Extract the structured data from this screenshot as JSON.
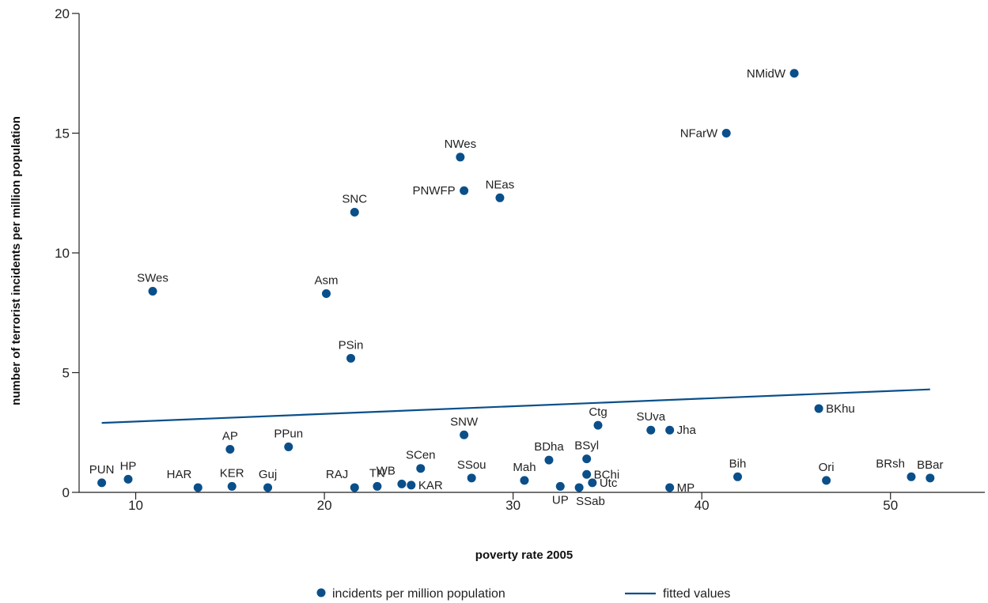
{
  "chart_data": {
    "type": "scatter",
    "xlabel": "poverty rate 2005",
    "ylabel": "number of terrorist incidents per million population",
    "xlim": [
      7,
      55
    ],
    "ylim": [
      0,
      20
    ],
    "xticks": [
      10,
      20,
      30,
      40,
      50
    ],
    "yticks": [
      0,
      5,
      10,
      15,
      20
    ],
    "grid": false,
    "legend_position": "bottom",
    "series": [
      {
        "name": "incidents per million population",
        "kind": "points",
        "color": "#0a4f8a",
        "points": [
          {
            "label": "PUN",
            "x": 8.2,
            "y": 0.4,
            "lpos": "above"
          },
          {
            "label": "HP",
            "x": 9.6,
            "y": 0.55,
            "lpos": "above"
          },
          {
            "label": "HAR",
            "x": 13.3,
            "y": 0.2,
            "lpos": "aboveleft"
          },
          {
            "label": "KER",
            "x": 15.1,
            "y": 0.25,
            "lpos": "above"
          },
          {
            "label": "Guj",
            "x": 17.0,
            "y": 0.2,
            "lpos": "above"
          },
          {
            "label": "AP",
            "x": 15.0,
            "y": 1.8,
            "lpos": "above"
          },
          {
            "label": "PPun",
            "x": 18.1,
            "y": 1.9,
            "lpos": "above"
          },
          {
            "label": "SWes",
            "x": 10.9,
            "y": 8.4,
            "lpos": "above"
          },
          {
            "label": "Asm",
            "x": 20.1,
            "y": 8.3,
            "lpos": "above"
          },
          {
            "label": "PSin",
            "x": 21.4,
            "y": 5.6,
            "lpos": "above"
          },
          {
            "label": "SNC",
            "x": 21.6,
            "y": 11.7,
            "lpos": "above"
          },
          {
            "label": "RAJ",
            "x": 21.6,
            "y": 0.2,
            "lpos": "aboveleft"
          },
          {
            "label": "TN",
            "x": 22.8,
            "y": 0.25,
            "lpos": "above"
          },
          {
            "label": "WB",
            "x": 24.1,
            "y": 0.35,
            "lpos": "aboveleft"
          },
          {
            "label": "KAR",
            "x": 24.6,
            "y": 0.3,
            "lpos": "right"
          },
          {
            "label": "SCen",
            "x": 25.1,
            "y": 1.0,
            "lpos": "above"
          },
          {
            "label": "SNW",
            "x": 27.4,
            "y": 2.4,
            "lpos": "above"
          },
          {
            "label": "SSou",
            "x": 27.8,
            "y": 0.6,
            "lpos": "above"
          },
          {
            "label": "NWes",
            "x": 27.2,
            "y": 14.0,
            "lpos": "above"
          },
          {
            "label": "PNWFP",
            "x": 27.4,
            "y": 12.6,
            "lpos": "left"
          },
          {
            "label": "NEas",
            "x": 29.3,
            "y": 12.3,
            "lpos": "above"
          },
          {
            "label": "Mah",
            "x": 30.6,
            "y": 0.5,
            "lpos": "above"
          },
          {
            "label": "BDha",
            "x": 31.9,
            "y": 1.35,
            "lpos": "above"
          },
          {
            "label": "UP",
            "x": 32.5,
            "y": 0.25,
            "lpos": "below"
          },
          {
            "label": "SSab",
            "x": 33.5,
            "y": 0.2,
            "lpos": "belowright"
          },
          {
            "label": "BSyl",
            "x": 33.9,
            "y": 1.4,
            "lpos": "above"
          },
          {
            "label": "BChi",
            "x": 33.9,
            "y": 0.75,
            "lpos": "right"
          },
          {
            "label": "Utc",
            "x": 34.2,
            "y": 0.4,
            "lpos": "right"
          },
          {
            "label": "Ctg",
            "x": 34.5,
            "y": 2.8,
            "lpos": "above"
          },
          {
            "label": "SUva",
            "x": 37.3,
            "y": 2.6,
            "lpos": "above"
          },
          {
            "label": "Jha",
            "x": 38.3,
            "y": 2.6,
            "lpos": "right"
          },
          {
            "label": "MP",
            "x": 38.3,
            "y": 0.2,
            "lpos": "right"
          },
          {
            "label": "NFarW",
            "x": 41.3,
            "y": 15.0,
            "lpos": "left"
          },
          {
            "label": "Bih",
            "x": 41.9,
            "y": 0.65,
            "lpos": "above"
          },
          {
            "label": "NMidW",
            "x": 44.9,
            "y": 17.5,
            "lpos": "left"
          },
          {
            "label": "BKhu",
            "x": 46.2,
            "y": 3.5,
            "lpos": "right"
          },
          {
            "label": "Ori",
            "x": 46.6,
            "y": 0.5,
            "lpos": "above"
          },
          {
            "label": "BRsh",
            "x": 51.1,
            "y": 0.65,
            "lpos": "aboveleft"
          },
          {
            "label": "BBar",
            "x": 52.1,
            "y": 0.6,
            "lpos": "above"
          }
        ]
      },
      {
        "name": "fitted values",
        "kind": "line",
        "color": "#0a4f8a",
        "x": [
          8.2,
          52.1
        ],
        "y": [
          2.9,
          4.3
        ]
      }
    ]
  }
}
